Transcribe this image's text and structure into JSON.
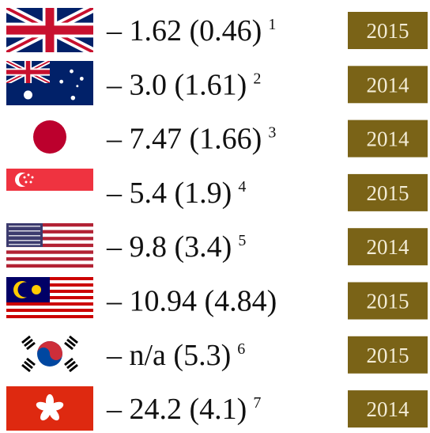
{
  "rows": [
    {
      "value": "– 1.62 (0.46)",
      "note": "1",
      "year": "2015"
    },
    {
      "value": "– 3.0 (1.61)",
      "note": "2",
      "year": "2014"
    },
    {
      "value": "– 7.47 (1.66)",
      "note": "3",
      "year": "2014"
    },
    {
      "value": "– 5.4 (1.9)",
      "note": "4",
      "year": "2015"
    },
    {
      "value": "– 9.8 (3.4)",
      "note": "5",
      "year": "2014"
    },
    {
      "value": "– 10.94 (4.84)",
      "year": "2015"
    },
    {
      "value": "– n/a (5.3)",
      "note": "6",
      "year": "2015"
    },
    {
      "value": "– 24.2 (4.1)",
      "note": "7",
      "year": "2014"
    }
  ]
}
